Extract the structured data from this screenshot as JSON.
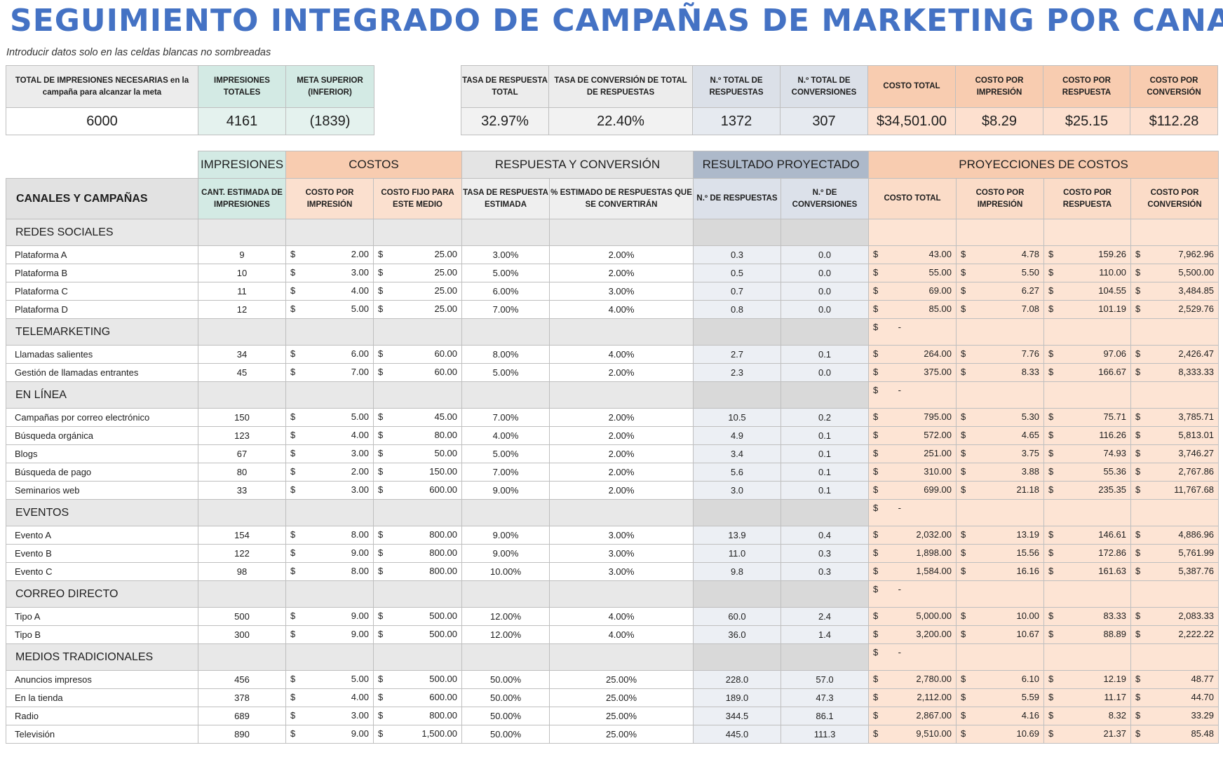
{
  "title": "SEGUIMIENTO INTEGRADO DE CAMPAÑAS DE MARKETING POR CANAL",
  "subtitle": "Introducir datos solo en las celdas blancas no sombreadas",
  "summary_left": {
    "headers": [
      "TOTAL DE IMPRESIONES NECESARIAS en la campaña para alcanzar la meta",
      "IMPRESIONES TOTALES",
      "META SUPERIOR (INFERIOR)"
    ],
    "values": [
      "6000",
      "4161",
      "(1839)"
    ]
  },
  "summary_right": {
    "headers": [
      "TASA DE RESPUESTA TOTAL",
      "TASA DE CONVERSIÓN DE TOTAL DE RESPUESTAS",
      "N.º TOTAL DE RESPUESTAS",
      "N.º TOTAL DE CONVERSIONES",
      "COSTO TOTAL",
      "COSTO POR IMPRESIÓN",
      "COSTO POR RESPUESTA",
      "COSTO POR CONVERSIÓN"
    ],
    "values": [
      "32.97%",
      "22.40%",
      "1372",
      "307",
      "$34,501.00",
      "$8.29",
      "$25.15",
      "$112.28"
    ]
  },
  "groups": {
    "impresiones": "IMPRESIONES",
    "costos": "COSTOS",
    "respuesta": "RESPUESTA Y CONVERSIÓN",
    "resultado": "RESULTADO PROYECTADO",
    "proyecciones": "PROYECCIONES DE COSTOS"
  },
  "columns": [
    "CANALES Y CAMPAÑAS",
    "CANT. ESTIMADA DE IMPRESIONES",
    "COSTO POR IMPRESIÓN",
    "COSTO FIJO PARA ESTE MEDIO",
    "TASA DE RESPUESTA ESTIMADA",
    "% ESTIMADO DE RESPUESTAS QUE SE CONVERTIRÁN",
    "N.º DE RESPUESTAS",
    "N.º DE CONVERSIONES",
    "COSTO TOTAL",
    "COSTO POR IMPRESIÓN",
    "COSTO POR RESPUESTA",
    "COSTO POR CONVERSIÓN"
  ],
  "currency": "$",
  "empty_dash": "-",
  "categories": [
    {
      "name": "REDES SOCIALES",
      "show_total": false,
      "rows": [
        [
          "Plataforma A",
          "9",
          "2.00",
          "25.00",
          "3.00%",
          "2.00%",
          "0.3",
          "0.0",
          "43.00",
          "4.78",
          "159.26",
          "7,962.96"
        ],
        [
          "Plataforma B",
          "10",
          "3.00",
          "25.00",
          "5.00%",
          "2.00%",
          "0.5",
          "0.0",
          "55.00",
          "5.50",
          "110.00",
          "5,500.00"
        ],
        [
          "Plataforma C",
          "11",
          "4.00",
          "25.00",
          "6.00%",
          "3.00%",
          "0.7",
          "0.0",
          "69.00",
          "6.27",
          "104.55",
          "3,484.85"
        ],
        [
          "Plataforma D",
          "12",
          "5.00",
          "25.00",
          "7.00%",
          "4.00%",
          "0.8",
          "0.0",
          "85.00",
          "7.08",
          "101.19",
          "2,529.76"
        ]
      ]
    },
    {
      "name": "TELEMARKETING",
      "show_total": true,
      "rows": [
        [
          "Llamadas salientes",
          "34",
          "6.00",
          "60.00",
          "8.00%",
          "4.00%",
          "2.7",
          "0.1",
          "264.00",
          "7.76",
          "97.06",
          "2,426.47"
        ],
        [
          "Gestión de llamadas entrantes",
          "45",
          "7.00",
          "60.00",
          "5.00%",
          "2.00%",
          "2.3",
          "0.0",
          "375.00",
          "8.33",
          "166.67",
          "8,333.33"
        ]
      ]
    },
    {
      "name": "EN LÍNEA",
      "show_total": true,
      "rows": [
        [
          "Campañas por correo electrónico",
          "150",
          "5.00",
          "45.00",
          "7.00%",
          "2.00%",
          "10.5",
          "0.2",
          "795.00",
          "5.30",
          "75.71",
          "3,785.71"
        ],
        [
          "Búsqueda orgánica",
          "123",
          "4.00",
          "80.00",
          "4.00%",
          "2.00%",
          "4.9",
          "0.1",
          "572.00",
          "4.65",
          "116.26",
          "5,813.01"
        ],
        [
          "Blogs",
          "67",
          "3.00",
          "50.00",
          "5.00%",
          "2.00%",
          "3.4",
          "0.1",
          "251.00",
          "3.75",
          "74.93",
          "3,746.27"
        ],
        [
          "Búsqueda de pago",
          "80",
          "2.00",
          "150.00",
          "7.00%",
          "2.00%",
          "5.6",
          "0.1",
          "310.00",
          "3.88",
          "55.36",
          "2,767.86"
        ],
        [
          "Seminarios web",
          "33",
          "3.00",
          "600.00",
          "9.00%",
          "2.00%",
          "3.0",
          "0.1",
          "699.00",
          "21.18",
          "235.35",
          "11,767.68"
        ]
      ]
    },
    {
      "name": "EVENTOS",
      "show_total": true,
      "rows": [
        [
          "Evento A",
          "154",
          "8.00",
          "800.00",
          "9.00%",
          "3.00%",
          "13.9",
          "0.4",
          "2,032.00",
          "13.19",
          "146.61",
          "4,886.96"
        ],
        [
          "Evento B",
          "122",
          "9.00",
          "800.00",
          "9.00%",
          "3.00%",
          "11.0",
          "0.3",
          "1,898.00",
          "15.56",
          "172.86",
          "5,761.99"
        ],
        [
          "Evento C",
          "98",
          "8.00",
          "800.00",
          "10.00%",
          "3.00%",
          "9.8",
          "0.3",
          "1,584.00",
          "16.16",
          "161.63",
          "5,387.76"
        ]
      ]
    },
    {
      "name": "CORREO DIRECTO",
      "show_total": true,
      "rows": [
        [
          "Tipo A",
          "500",
          "9.00",
          "500.00",
          "12.00%",
          "4.00%",
          "60.0",
          "2.4",
          "5,000.00",
          "10.00",
          "83.33",
          "2,083.33"
        ],
        [
          "Tipo B",
          "300",
          "9.00",
          "500.00",
          "12.00%",
          "4.00%",
          "36.0",
          "1.4",
          "3,200.00",
          "10.67",
          "88.89",
          "2,222.22"
        ]
      ]
    },
    {
      "name": "MEDIOS TRADICIONALES",
      "show_total": true,
      "rows": [
        [
          "Anuncios impresos",
          "456",
          "5.00",
          "500.00",
          "50.00%",
          "25.00%",
          "228.0",
          "57.0",
          "2,780.00",
          "6.10",
          "12.19",
          "48.77"
        ],
        [
          "En la tienda",
          "378",
          "4.00",
          "600.00",
          "50.00%",
          "25.00%",
          "189.0",
          "47.3",
          "2,112.00",
          "5.59",
          "11.17",
          "44.70"
        ],
        [
          "Radio",
          "689",
          "3.00",
          "800.00",
          "50.00%",
          "25.00%",
          "344.5",
          "86.1",
          "2,867.00",
          "4.16",
          "8.32",
          "33.29"
        ],
        [
          "Televisión",
          "890",
          "9.00",
          "1,500.00",
          "50.00%",
          "25.00%",
          "445.0",
          "111.3",
          "9,510.00",
          "10.69",
          "21.37",
          "85.48"
        ]
      ]
    }
  ]
}
